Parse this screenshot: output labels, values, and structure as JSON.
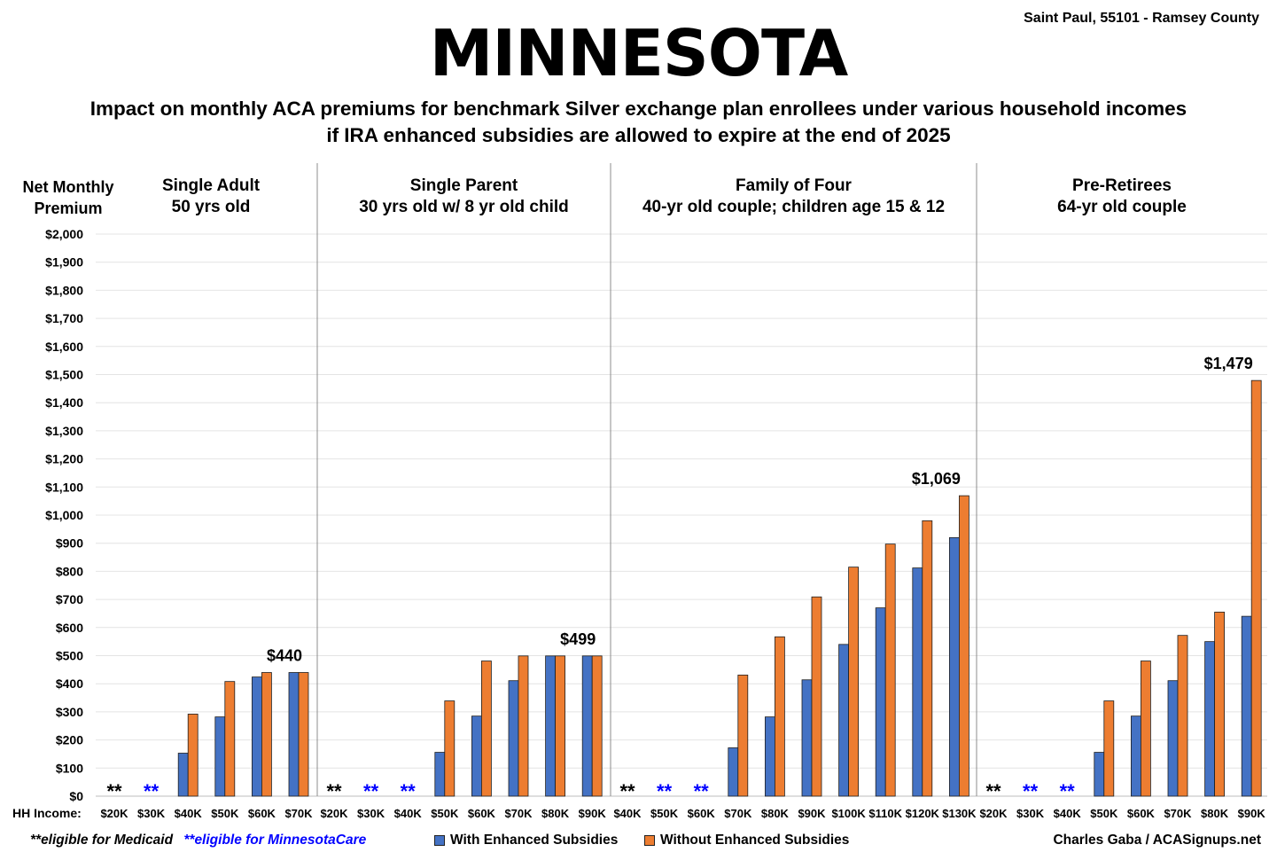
{
  "title": "MINNESOTA",
  "location": "Saint Paul, 55101 - Ramsey County",
  "subtitle_line1": "Impact on monthly ACA premiums for benchmark Silver exchange plan enrollees under various household incomes",
  "subtitle_line2": "if IRA enhanced subsidies are allowed to expire at the end of 2025",
  "ylabel_line1": "Net Monthly",
  "ylabel_line2": "Premium",
  "xlabel": "HH Income:",
  "footnotes": {
    "medicaid": "**eligible for Medicaid",
    "minnesotacare": "**eligible for MinnesotaCare"
  },
  "legend": {
    "with": "With Enhanced Subsidies",
    "without": "Without Enhanced Subsidies"
  },
  "credit": "Charles Gaba / ACASignups.net",
  "colors": {
    "with": "#4472C4",
    "without": "#ED7D31",
    "medicaid_marker": "#000000",
    "minnesotacare_marker": "#0000FF"
  },
  "chart_data": {
    "type": "bar",
    "ylim": [
      0,
      2000
    ],
    "yticks": [
      "$0",
      "$100",
      "$200",
      "$300",
      "$400",
      "$500",
      "$600",
      "$700",
      "$800",
      "$900",
      "$1,000",
      "$1,100",
      "$1,200",
      "$1,300",
      "$1,400",
      "$1,500",
      "$1,600",
      "$1,700",
      "$1,800",
      "$1,900",
      "$2,000"
    ],
    "grid": true,
    "legend_position": "bottom",
    "series_names": [
      "With Enhanced Subsidies",
      "Without Enhanced Subsidies"
    ],
    "panels": [
      {
        "title_line1": "Single Adult",
        "title_line2": "50 yrs old",
        "categories": [
          "$20K",
          "$30K",
          "$40K",
          "$50K",
          "$60K",
          "$70K"
        ],
        "with": [
          null,
          null,
          153,
          282,
          424,
          440
        ],
        "without": [
          null,
          null,
          292,
          408,
          440,
          440
        ],
        "markers": [
          "medicaid",
          "minnesotacare",
          "",
          "",
          "",
          ""
        ],
        "annotation": {
          "index": 5,
          "text": "$440"
        }
      },
      {
        "title_line1": "Single Parent",
        "title_line2": "30 yrs old w/ 8 yr old child",
        "categories": [
          "$20K",
          "$30K",
          "$40K",
          "$50K",
          "$60K",
          "$70K",
          "$80K",
          "$90K"
        ],
        "with": [
          null,
          null,
          null,
          156,
          285,
          411,
          499,
          499
        ],
        "without": [
          null,
          null,
          null,
          339,
          481,
          499,
          499,
          499
        ],
        "markers": [
          "medicaid",
          "minnesotacare",
          "minnesotacare",
          "",
          "",
          "",
          "",
          ""
        ],
        "annotation": {
          "index": 7,
          "text": "$499"
        }
      },
      {
        "title_line1": "Family of Four",
        "title_line2": "40-yr old couple; children age 15 & 12",
        "categories": [
          "$40K",
          "$50K",
          "$60K",
          "$70K",
          "$80K",
          "$90K",
          "$100K",
          "$110K",
          "$120K",
          "$130K"
        ],
        "with": [
          null,
          null,
          null,
          172,
          282,
          414,
          540,
          670,
          812,
          920
        ],
        "without": [
          null,
          null,
          null,
          431,
          567,
          709,
          815,
          897,
          980,
          1069
        ],
        "markers": [
          "medicaid",
          "minnesotacare",
          "minnesotacare",
          "",
          "",
          "",
          "",
          "",
          "",
          ""
        ],
        "annotation": {
          "index": 9,
          "text": "$1,069"
        }
      },
      {
        "title_line1": "Pre-Retirees",
        "title_line2": "64-yr old couple",
        "categories": [
          "$20K",
          "$30K",
          "$40K",
          "$50K",
          "$60K",
          "$70K",
          "$80K",
          "$90K"
        ],
        "with": [
          null,
          null,
          null,
          156,
          285,
          411,
          550,
          640
        ],
        "without": [
          null,
          null,
          null,
          339,
          481,
          572,
          655,
          1479
        ],
        "markers": [
          "medicaid",
          "minnesotacare",
          "minnesotacare",
          "",
          "",
          "",
          "",
          ""
        ],
        "annotation": {
          "index": 7,
          "text": "$1,479"
        }
      }
    ]
  }
}
